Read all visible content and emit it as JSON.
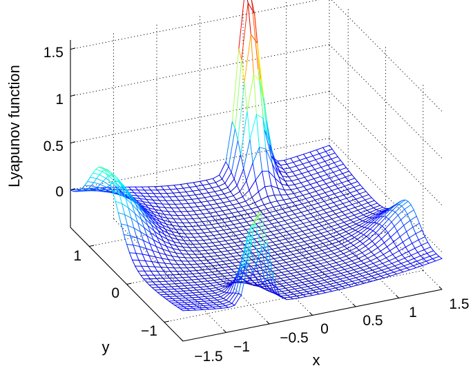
{
  "chart_data": {
    "type": "surface",
    "xlabel": "x",
    "ylabel": "y",
    "zlabel": "Lyapunov function",
    "x_ticks": [
      "−1.5",
      "−1",
      "−0.5",
      "0",
      "0.5",
      "1",
      "1.5"
    ],
    "y_ticks": [
      "−1",
      "0",
      "1"
    ],
    "z_ticks": [
      "0",
      "0.5",
      "1",
      "1.5"
    ],
    "xlim": [
      -1.5,
      1.5
    ],
    "ylim": [
      -1.5,
      1.5
    ],
    "zlim": [
      -0.4,
      1.6
    ],
    "grid": true,
    "colormap": "jet",
    "color_limits": [
      -0.35,
      1.7
    ],
    "surface_features": [
      {
        "feature": "peak",
        "x": 0.55,
        "y": 1.5,
        "z": 1.7
      },
      {
        "feature": "peak",
        "x": -0.6,
        "y": -1.5,
        "z": 0.7
      },
      {
        "feature": "bump",
        "x": -1.5,
        "y": 0.6,
        "z": 0.45
      },
      {
        "feature": "bump",
        "x": 1.5,
        "y": -0.6,
        "z": 0.05
      },
      {
        "feature": "valley",
        "x": 0.0,
        "y": 0.0,
        "z": -0.3
      }
    ]
  }
}
